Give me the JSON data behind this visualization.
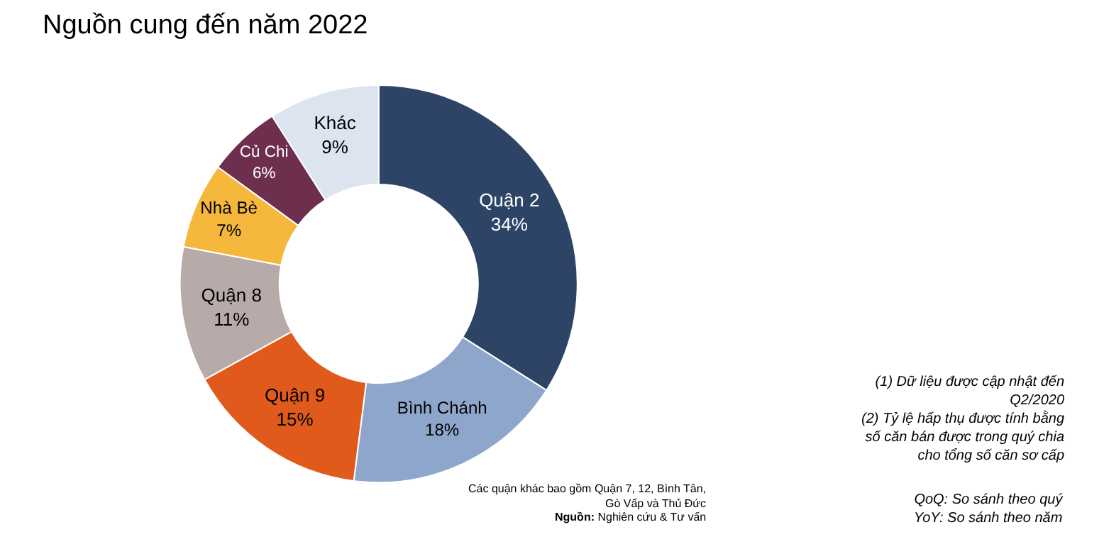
{
  "chart_data": {
    "type": "donut",
    "title": "Nguồn cung đến năm 2022",
    "categories": [
      "Quận 2",
      "Bình Chánh",
      "Quận 9",
      "Quận 8",
      "Nhà Bè",
      "Củ Chi",
      "Khác"
    ],
    "values": [
      34,
      18,
      15,
      11,
      7,
      6,
      9
    ],
    "value_labels": [
      "34%",
      "18%",
      "15%",
      "11%",
      "7%",
      "6%",
      "9%"
    ],
    "colors": [
      "#2e4466",
      "#8ea6cc",
      "#e05a1c",
      "#b8aaa8",
      "#f5b83c",
      "#6e2f4f",
      "#dce4f0"
    ],
    "legend": false,
    "annotations": [
      "Các quận khác bao gồm Quận 7, 12, Bình Tân,\nGò Vấp và Thủ Đức",
      "Nguồn: Nghiên cứu & Tư vấn",
      "(1) Dữ liệu được cập nhật đến\nQ2/2020\n(2) Tỷ lệ hấp thụ được tính bằng\nsố căn bán được trong quý chia\ncho tổng số căn sơ cấp",
      "QoQ: So sánh theo quý\nYoY: So sánh theo năm"
    ]
  }
}
